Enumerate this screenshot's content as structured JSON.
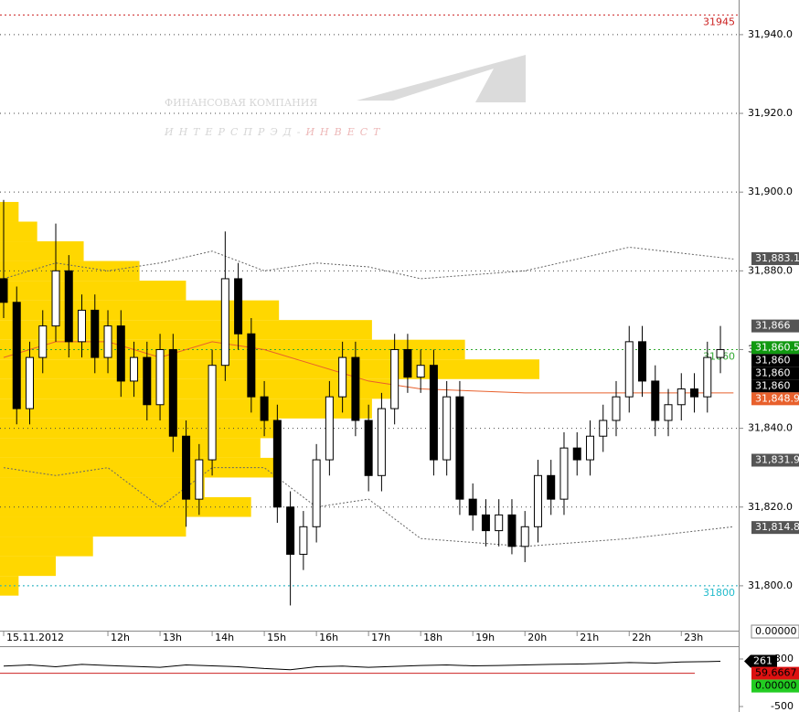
{
  "chart_data": {
    "type": "candlestick",
    "watermark": {
      "company": "ФИНАНСОВАЯ КОМПАНИЯ",
      "name_gray": "ИНТЕРСПРЭД-",
      "name_red": "ИНВЕСТ"
    },
    "x": [
      10,
      10.25,
      10.5,
      10.75,
      11,
      11.25,
      11.5,
      11.75,
      12,
      12.25,
      12.5,
      12.75,
      13,
      13.25,
      13.5,
      13.75,
      14,
      14.25,
      14.5,
      14.75,
      15,
      15.25,
      15.5,
      15.75,
      16,
      16.25,
      16.5,
      16.75,
      17,
      17.25,
      17.5,
      17.75,
      18,
      18.25,
      18.5,
      18.75,
      19,
      19.25,
      19.5,
      19.75,
      20,
      20.25,
      20.5,
      20.75,
      21,
      21.25,
      21.5,
      21.75,
      22,
      22.25,
      22.5,
      22.75,
      23,
      23.25,
      23.5,
      23.75
    ],
    "open": [
      31878,
      31872,
      31845,
      31858,
      31866,
      31880,
      31862,
      31870,
      31858,
      31866,
      31852,
      31858,
      31846,
      31860,
      31838,
      31822,
      31832,
      31856,
      31878,
      31864,
      31848,
      31842,
      31820,
      31808,
      31815,
      31832,
      31848,
      31858,
      31842,
      31828,
      31845,
      31860,
      31853,
      31856,
      31832,
      31848,
      31822,
      31818,
      31814,
      31818,
      31810,
      31815,
      31828,
      31822,
      31835,
      31832,
      31838,
      31842,
      31848,
      31862,
      31852,
      31842,
      31846,
      31850,
      31848,
      31858
    ],
    "high": [
      31898,
      31876,
      31862,
      31870,
      31892,
      31884,
      31874,
      31874,
      31870,
      31870,
      31862,
      31862,
      31864,
      31864,
      31842,
      31836,
      31860,
      31890,
      31882,
      31868,
      31852,
      31846,
      31824,
      31819,
      31836,
      31852,
      31862,
      31862,
      31846,
      31849,
      31864,
      31864,
      31860,
      31860,
      31852,
      31852,
      31826,
      31822,
      31822,
      31822,
      31819,
      31832,
      31832,
      31839,
      31839,
      31842,
      31846,
      31852,
      31866,
      31866,
      31856,
      31850,
      31854,
      31854,
      31862,
      31866
    ],
    "low": [
      31868,
      31841,
      31841,
      31854,
      31862,
      31858,
      31858,
      31854,
      31854,
      31848,
      31848,
      31842,
      31842,
      31834,
      31815,
      31818,
      31828,
      31852,
      31860,
      31844,
      31838,
      31816,
      31795,
      31804,
      31811,
      31828,
      31844,
      31838,
      31824,
      31824,
      31841,
      31849,
      31849,
      31828,
      31828,
      31818,
      31814,
      31810,
      31810,
      31808,
      31806,
      31811,
      31818,
      31818,
      31828,
      31828,
      31834,
      31838,
      31844,
      31848,
      31838,
      31838,
      31842,
      31844,
      31844,
      31854
    ],
    "close": [
      31872,
      31845,
      31858,
      31866,
      31880,
      31862,
      31870,
      31858,
      31866,
      31852,
      31858,
      31846,
      31860,
      31838,
      31822,
      31832,
      31856,
      31878,
      31864,
      31848,
      31842,
      31820,
      31808,
      31815,
      31832,
      31848,
      31858,
      31842,
      31828,
      31845,
      31860,
      31853,
      31856,
      31832,
      31848,
      31822,
      31818,
      31814,
      31818,
      31810,
      31815,
      31828,
      31822,
      31835,
      31832,
      31838,
      31842,
      31848,
      31862,
      31852,
      31842,
      31846,
      31850,
      31848,
      31858,
      31860
    ],
    "xlim": [
      9.93,
      24.1
    ],
    "xticks": [
      {
        "value": 10,
        "label": "15.11.2012"
      },
      {
        "value": 12,
        "label": "12h"
      },
      {
        "value": 13,
        "label": "13h"
      },
      {
        "value": 14,
        "label": "14h"
      },
      {
        "value": 15,
        "label": "15h"
      },
      {
        "value": 16,
        "label": "16h"
      },
      {
        "value": 17,
        "label": "17h"
      },
      {
        "value": 18,
        "label": "18h"
      },
      {
        "value": 19,
        "label": "19h"
      },
      {
        "value": 20,
        "label": "20h"
      },
      {
        "value": 21,
        "label": "21h"
      },
      {
        "value": 22,
        "label": "22h"
      },
      {
        "value": 23,
        "label": "23h"
      }
    ],
    "ylim": [
      31788.6,
      31948.8
    ],
    "yticks": [
      {
        "value": 31800,
        "label": "31,800.0"
      },
      {
        "value": 31820,
        "label": "31,820.0"
      },
      {
        "value": 31840,
        "label": "31,840.0"
      },
      {
        "value": 31860,
        "label": "31,860.0"
      },
      {
        "value": 31880,
        "label": "31,880.0"
      },
      {
        "value": 31900,
        "label": "31,900.0"
      },
      {
        "value": 31920,
        "label": "31,920.0"
      },
      {
        "value": 31940,
        "label": "31,940.0"
      }
    ],
    "grid": true,
    "volume_profile": {
      "color": "#ffd700",
      "prices": [
        31800,
        31805,
        31810,
        31815,
        31820,
        31825,
        31830,
        31835,
        31840,
        31845,
        31850,
        31855,
        31860,
        31865,
        31870,
        31875,
        31880,
        31885,
        31890,
        31895
      ],
      "values": [
        20,
        60,
        100,
        200,
        270,
        220,
        300,
        280,
        300,
        400,
        420,
        580,
        500,
        400,
        300,
        200,
        150,
        90,
        40,
        20
      ]
    },
    "lines": [
      {
        "name": "ma",
        "color": "#e8602c",
        "dash": "",
        "x": [
          10,
          11,
          12,
          13,
          14,
          15,
          16,
          17,
          18,
          20,
          22,
          24
        ],
        "values": [
          31858,
          31862,
          31862,
          31858,
          31862,
          31860,
          31856,
          31852,
          31850,
          31849,
          31849,
          31849
        ]
      },
      {
        "name": "upper",
        "color": "#666",
        "dash": "2,2",
        "x": [
          10,
          11,
          12,
          13,
          14,
          15,
          16,
          17,
          18,
          20,
          22,
          24
        ],
        "values": [
          31878,
          31882,
          31880,
          31882,
          31885,
          31880,
          31882,
          31881,
          31878,
          31880,
          31886,
          31883
        ]
      },
      {
        "name": "lower",
        "color": "#666",
        "dash": "2,2",
        "x": [
          10,
          11,
          12,
          13,
          14,
          15,
          16,
          17,
          18,
          20,
          22,
          24
        ],
        "values": [
          31830,
          31828,
          31830,
          31820,
          31830,
          31830,
          31820,
          31822,
          31812,
          31810,
          31812,
          31815
        ]
      }
    ],
    "levels": [
      {
        "value": 31945,
        "label": "31945",
        "color": "#cc2222"
      },
      {
        "value": 31860,
        "label": "31860",
        "color": "#33aa33"
      },
      {
        "value": 31800,
        "label": "31800",
        "color": "#22bbcc"
      }
    ],
    "price_tags": [
      {
        "value": 31883.1,
        "label": "31,883.1",
        "color": "#555555"
      },
      {
        "value": 31866,
        "label": "31,866",
        "color": "#555555"
      },
      {
        "value": 31860.5,
        "label": "31,860.5",
        "color": "#119911"
      },
      {
        "value": 31860,
        "label": "31,860",
        "color": "#000000"
      },
      {
        "value": 31860,
        "label": "31,860",
        "color": "#000000"
      },
      {
        "value": 31860,
        "label": "31,860",
        "color": "#000000"
      },
      {
        "value": 31848.9,
        "label": "31,848.9",
        "color": "#e8602c"
      },
      {
        "value": 31831.9,
        "label": "31,831.9",
        "color": "#555555"
      },
      {
        "value": 31814.8,
        "label": "31,814.8",
        "color": "#555555"
      }
    ],
    "volume_tag": "0.00000",
    "indicator": {
      "ylim": [
        -500,
        300
      ],
      "yticks": [
        300,
        -500
      ],
      "x": [
        10,
        10.5,
        11,
        11.5,
        12,
        12.5,
        13,
        13.5,
        14,
        14.5,
        15,
        15.5,
        16,
        16.5,
        17,
        17.5,
        18,
        18.5,
        19,
        19.5,
        20,
        20.5,
        21,
        21.5,
        22,
        22.5,
        23,
        23.5,
        23.75
      ],
      "values": [
        180,
        200,
        170,
        210,
        190,
        175,
        160,
        200,
        185,
        170,
        140,
        120,
        170,
        180,
        160,
        175,
        190,
        200,
        185,
        190,
        200,
        210,
        215,
        225,
        240,
        230,
        250,
        255,
        261
      ],
      "level": 59.6667,
      "level_label": "59.6667",
      "zero_label": "0.00000",
      "last_label": "261"
    }
  }
}
